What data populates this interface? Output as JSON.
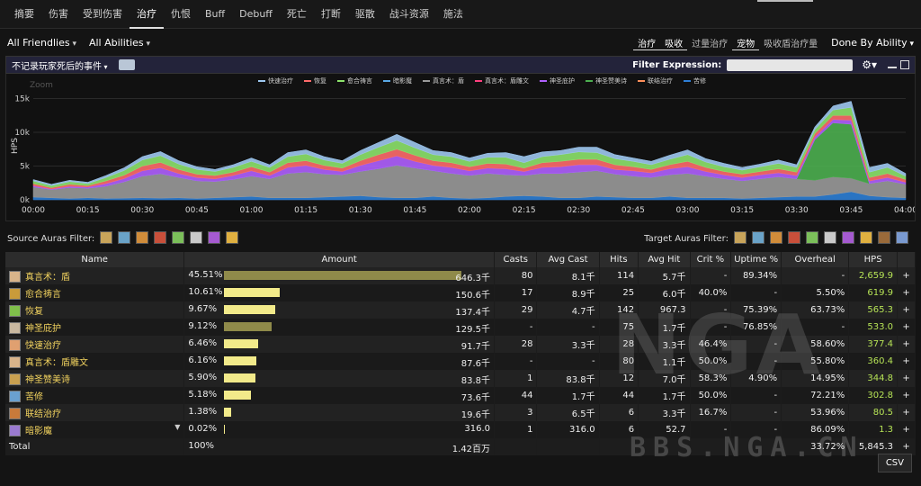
{
  "tabs": [
    "摘要",
    "伤害",
    "受到伤害",
    "治疗",
    "仇恨",
    "Buff",
    "Debuff",
    "死亡",
    "打断",
    "驱散",
    "战斗资源",
    "施法"
  ],
  "active_tab": 3,
  "toolbar": {
    "friendlies": "All Friendlies",
    "abilities": "All Abilities",
    "modes": [
      "治疗",
      "吸收",
      "过量治疗",
      "宠物",
      "吸收盾治疗量"
    ],
    "selected_modes": [
      0,
      1,
      3
    ],
    "done_by": "Done By Ability"
  },
  "filterbar": {
    "events": "不记录玩家死后的事件",
    "filter_label": "Filter Expression:",
    "filter_value": ""
  },
  "chart_data": {
    "type": "area",
    "title": "",
    "xlabel": "",
    "ylabel": "HPS",
    "zoom_label": "Zoom",
    "ylim": [
      0,
      16000
    ],
    "y_ticks": [
      "0k",
      "5k",
      "10k",
      "15k"
    ],
    "x_ticks": [
      "00:00",
      "00:15",
      "00:30",
      "00:45",
      "01:00",
      "01:15",
      "01:30",
      "01:45",
      "02:00",
      "02:15",
      "02:30",
      "02:45",
      "03:00",
      "03:15",
      "03:30",
      "03:45",
      "04:00"
    ],
    "legend": [
      "快速治疗",
      "恢复",
      "愈合祷言",
      "暗影魔",
      "真言术：盾",
      "真言术：盾雕文",
      "神圣庇护",
      "神圣赞美诗",
      "联结治疗",
      "苦修"
    ],
    "legend_colors": [
      "#9ec8f0",
      "#ff6b6b",
      "#8de36b",
      "#5aa9e6",
      "#9a9a9a",
      "#ff3f7f",
      "#b061ff",
      "#4caf50",
      "#ff8f5a",
      "#2e7fd6"
    ],
    "x": [
      0,
      5,
      10,
      15,
      20,
      25,
      30,
      35,
      40,
      45,
      50,
      55,
      60,
      65,
      70,
      75,
      80,
      85,
      90,
      95,
      100,
      105,
      110,
      115,
      120,
      125,
      130,
      135,
      140,
      145,
      150,
      155,
      160,
      165,
      170,
      175,
      180,
      185,
      190,
      195,
      200,
      205,
      210,
      215,
      220,
      225,
      230,
      235,
      240
    ],
    "series": [
      {
        "name": "苦修",
        "values": [
          400,
          300,
          200,
          300,
          200,
          250,
          300,
          250,
          300,
          200,
          300,
          400,
          500,
          300,
          300,
          300,
          400,
          500,
          600,
          400,
          300,
          300,
          500,
          300,
          200,
          300,
          500,
          600,
          500,
          300,
          300,
          500,
          400,
          300,
          300,
          500,
          300,
          300,
          300,
          200,
          300,
          400,
          500,
          500,
          800,
          1200,
          600,
          400,
          300
        ]
      },
      {
        "name": "真言术：盾",
        "values": [
          1500,
          1200,
          1600,
          1400,
          1800,
          2400,
          3200,
          3600,
          3000,
          2600,
          2400,
          2600,
          3000,
          2800,
          3600,
          3800,
          3400,
          3200,
          3600,
          4200,
          4800,
          4400,
          3800,
          3600,
          3400,
          3600,
          3200,
          3000,
          3400,
          3600,
          3800,
          3800,
          3400,
          3200,
          3000,
          3200,
          3600,
          3200,
          2800,
          2600,
          2800,
          3000,
          2600,
          2400,
          2600,
          2000,
          1800,
          2400,
          2000
        ]
      },
      {
        "name": "神圣赞美诗",
        "values": [
          0,
          0,
          0,
          0,
          0,
          0,
          0,
          0,
          0,
          0,
          0,
          0,
          0,
          0,
          0,
          0,
          0,
          0,
          0,
          0,
          0,
          0,
          0,
          0,
          0,
          0,
          0,
          0,
          0,
          0,
          0,
          0,
          0,
          0,
          0,
          0,
          0,
          0,
          0,
          0,
          0,
          0,
          0,
          6000,
          8000,
          8000,
          0,
          0,
          0
        ]
      },
      {
        "name": "神圣庇护",
        "values": [
          200,
          100,
          200,
          200,
          400,
          500,
          800,
          900,
          600,
          500,
          400,
          600,
          800,
          500,
          900,
          1000,
          700,
          500,
          900,
          1200,
          1400,
          1000,
          800,
          900,
          700,
          800,
          900,
          600,
          900,
          1000,
          1100,
          900,
          700,
          800,
          700,
          900,
          1000,
          700,
          600,
          500,
          600,
          600,
          500,
          400,
          500,
          600,
          400,
          500,
          300
        ]
      },
      {
        "name": "恢复",
        "values": [
          300,
          200,
          300,
          200,
          400,
          500,
          700,
          800,
          600,
          500,
          500,
          500,
          600,
          500,
          700,
          700,
          600,
          500,
          700,
          900,
          1000,
          900,
          700,
          700,
          600,
          700,
          700,
          500,
          700,
          800,
          800,
          800,
          700,
          600,
          500,
          600,
          800,
          600,
          500,
          500,
          500,
          600,
          500,
          500,
          600,
          700,
          500,
          600,
          400
        ]
      },
      {
        "name": "愈合祷言",
        "values": [
          400,
          300,
          400,
          300,
          500,
          700,
          900,
          1000,
          800,
          700,
          600,
          700,
          800,
          700,
          900,
          1000,
          800,
          700,
          900,
          1100,
          1300,
          1100,
          900,
          900,
          800,
          900,
          1000,
          800,
          900,
          1000,
          1100,
          1000,
          900,
          800,
          700,
          800,
          1000,
          800,
          700,
          600,
          700,
          800,
          700,
          600,
          800,
          1200,
          800,
          900,
          500
        ]
      },
      {
        "name": "快速治疗",
        "values": [
          200,
          200,
          200,
          200,
          300,
          400,
          500,
          600,
          500,
          400,
          300,
          400,
          500,
          400,
          600,
          600,
          500,
          400,
          600,
          700,
          900,
          800,
          600,
          600,
          500,
          600,
          700,
          900,
          700,
          600,
          700,
          800,
          600,
          500,
          500,
          600,
          700,
          500,
          500,
          400,
          400,
          500,
          400,
          400,
          600,
          900,
          700,
          600,
          400
        ]
      }
    ]
  },
  "source_auras_label": "Source Auras Filter:",
  "target_auras_label": "Target Auras Filter:",
  "source_aura_icons": [
    "aura-icon",
    "aura-icon",
    "aura-icon",
    "aura-icon",
    "aura-icon",
    "aura-icon",
    "aura-icon",
    "aura-icon"
  ],
  "target_aura_icons": [
    "aura-icon",
    "aura-icon",
    "aura-icon",
    "aura-icon",
    "aura-icon",
    "aura-icon",
    "aura-icon",
    "aura-icon",
    "aura-icon",
    "aura-icon"
  ],
  "table": {
    "headers": [
      "Name",
      "Amount",
      "Casts",
      "Avg Cast",
      "Hits",
      "Avg Hit",
      "Crit %",
      "Uptime %",
      "Overheal",
      "HPS"
    ],
    "rows": [
      {
        "name": "真言术：盾",
        "pct": "45.51%",
        "bar": 1.0,
        "amount": "646.3千",
        "casts": "80",
        "avg_cast": "8.1千",
        "hits": "114",
        "avg_hit": "5.7千",
        "crit": "-",
        "uptime": "89.34%",
        "overheal": "-",
        "hps": "2,659.9",
        "color": "#8f8a4a"
      },
      {
        "name": "愈合祷言",
        "pct": "10.61%",
        "bar": 0.233,
        "amount": "150.6千",
        "casts": "17",
        "avg_cast": "8.9千",
        "hits": "25",
        "avg_hit": "6.0千",
        "crit": "40.0%",
        "uptime": "-",
        "overheal": "5.50%",
        "hps": "619.9",
        "color": "#f2ea8a"
      },
      {
        "name": "恢复",
        "pct": "9.67%",
        "bar": 0.213,
        "amount": "137.4千",
        "casts": "29",
        "avg_cast": "4.7千",
        "hits": "142",
        "avg_hit": "967.3",
        "crit": "-",
        "uptime": "75.39%",
        "overheal": "63.73%",
        "hps": "565.3",
        "color": "#f2ea8a"
      },
      {
        "name": "神圣庇护",
        "pct": "9.12%",
        "bar": 0.2,
        "amount": "129.5千",
        "casts": "-",
        "avg_cast": "-",
        "hits": "75",
        "avg_hit": "1.7千",
        "crit": "-",
        "uptime": "76.85%",
        "overheal": "-",
        "hps": "533.0",
        "color": "#8f8a4a"
      },
      {
        "name": "快速治疗",
        "pct": "6.46%",
        "bar": 0.142,
        "amount": "91.7千",
        "casts": "28",
        "avg_cast": "3.3千",
        "hits": "28",
        "avg_hit": "3.3千",
        "crit": "46.4%",
        "uptime": "-",
        "overheal": "58.60%",
        "hps": "377.4",
        "color": "#f2ea8a"
      },
      {
        "name": "真言术：盾雕文",
        "pct": "6.16%",
        "bar": 0.136,
        "amount": "87.6千",
        "casts": "-",
        "avg_cast": "-",
        "hits": "80",
        "avg_hit": "1.1千",
        "crit": "50.0%",
        "uptime": "-",
        "overheal": "55.80%",
        "hps": "360.4",
        "color": "#f2ea8a"
      },
      {
        "name": "神圣赞美诗",
        "pct": "5.90%",
        "bar": 0.13,
        "amount": "83.8千",
        "casts": "1",
        "avg_cast": "83.8千",
        "hits": "12",
        "avg_hit": "7.0千",
        "crit": "58.3%",
        "uptime": "4.90%",
        "overheal": "14.95%",
        "hps": "344.8",
        "color": "#f2ea8a"
      },
      {
        "name": "苦修",
        "pct": "5.18%",
        "bar": 0.114,
        "amount": "73.6千",
        "casts": "44",
        "avg_cast": "1.7千",
        "hits": "44",
        "avg_hit": "1.7千",
        "crit": "50.0%",
        "uptime": "-",
        "overheal": "72.21%",
        "hps": "302.8",
        "color": "#f2ea8a"
      },
      {
        "name": "联结治疗",
        "pct": "1.38%",
        "bar": 0.03,
        "amount": "19.6千",
        "casts": "3",
        "avg_cast": "6.5千",
        "hits": "6",
        "avg_hit": "3.3千",
        "crit": "16.7%",
        "uptime": "-",
        "overheal": "53.96%",
        "hps": "80.5",
        "color": "#f2ea8a"
      },
      {
        "name": "暗影魔",
        "pct": "0.02%",
        "bar": 0.0,
        "amount": "316.0",
        "casts": "1",
        "avg_cast": "316.0",
        "hits": "6",
        "avg_hit": "52.7",
        "crit": "-",
        "uptime": "-",
        "overheal": "86.09%",
        "hps": "1.3",
        "color": "#f2ea8a"
      }
    ],
    "total": {
      "label": "Total",
      "pct": "100%",
      "amount": "1.42百万",
      "overheal": "33.72%",
      "hps": "5,845.3"
    }
  },
  "csv_label": "CSV",
  "watermark": "BBS.NGA.CN",
  "watermark_logo": "NGA"
}
